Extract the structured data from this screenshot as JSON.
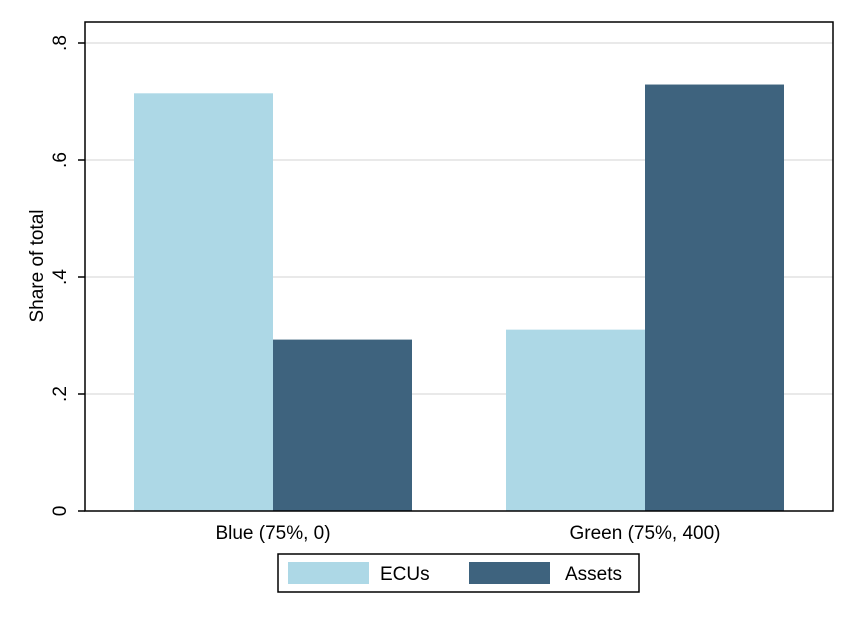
{
  "chart_data": {
    "type": "bar",
    "title": "",
    "xlabel": "",
    "ylabel": "Share of total",
    "ylim": [
      0,
      0.8
    ],
    "yticks": [
      0,
      0.2,
      0.4,
      0.6,
      0.8
    ],
    "ytick_labels": [
      "0",
      ".2",
      ".4",
      ".6",
      ".8"
    ],
    "categories": [
      "Blue (75%, 0)",
      "Green (75%, 400)"
    ],
    "series": [
      {
        "name": "ECUs",
        "color": "#add8e6",
        "values": [
          0.714,
          0.31
        ]
      },
      {
        "name": "Assets",
        "color": "#3e637e",
        "values": [
          0.293,
          0.729
        ]
      }
    ],
    "grid": true,
    "legend_position": "bottom"
  }
}
